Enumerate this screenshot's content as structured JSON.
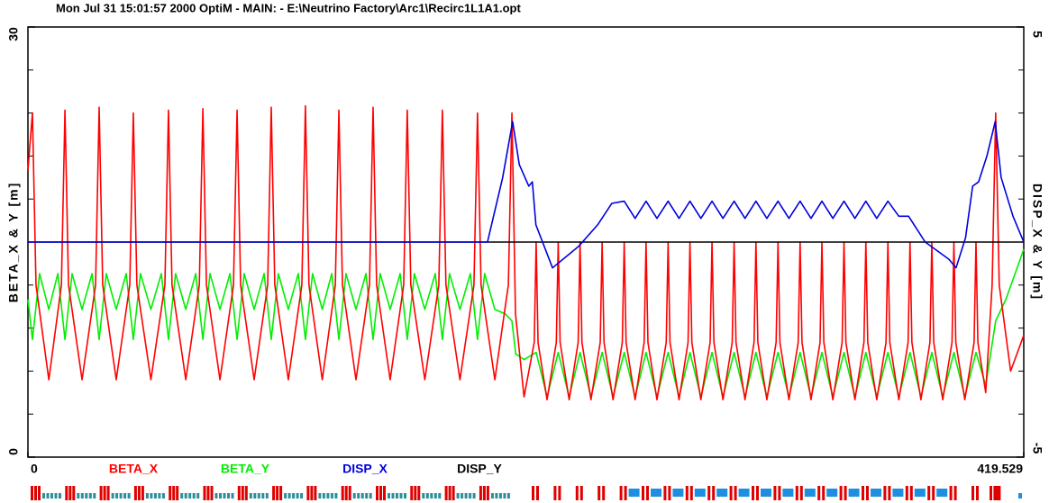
{
  "chart_data": {
    "type": "line",
    "title": "Mon Jul 31 15:01:57 2000    OptiM - MAIN: - E:\\Neutrino Factory\\Arc1\\Recirc1L1A1.opt",
    "y_label": "BETA_X & Y [m]",
    "y2_label": "DISP_X & Y [m]",
    "xlim": [
      0,
      419.529
    ],
    "xticks": [
      0,
      419.529
    ],
    "ylim": [
      0,
      30
    ],
    "yticks": [
      0,
      30
    ],
    "yminorticks": [
      3,
      6,
      9,
      12,
      15,
      18,
      21,
      24,
      27
    ],
    "y2lim": [
      -5,
      5
    ],
    "y2ticks": [
      -5,
      5
    ],
    "y2minorticks": [
      -4,
      -3,
      -2,
      -1,
      0,
      1,
      2,
      3,
      4
    ],
    "series": [
      {
        "name": "BETA_X",
        "color": "#ff0000",
        "x": [
          0,
          1.9,
          3.4,
          8.8,
          14.1,
          15.6,
          17.1,
          22.8,
          28.5,
          30,
          31.5,
          37.2,
          42.9,
          44.4,
          45.9,
          51.8,
          57.7,
          59.2,
          60.7,
          66.5,
          72.2,
          73.7,
          75.2,
          80.9,
          86.6,
          88.1,
          89.6,
          95.3,
          101,
          102.5,
          104,
          109.7,
          115.4,
          116.9,
          118.4,
          124,
          129.5,
          131,
          132.5,
          138.2,
          143.9,
          145.4,
          146.9,
          152.6,
          158.3,
          159.8,
          161.3,
          167.2,
          173.1,
          174.6,
          176.1,
          182,
          187.9,
          189.4,
          190.9,
          196.7,
          202.4,
          203.9,
          205.4,
          209,
          213.3,
          214.1,
          214.9,
          218.7,
          222.6,
          223.4,
          224.2,
          228,
          231.8,
          232.6,
          233.4,
          237.2,
          241.1,
          241.9,
          242.7,
          246.5,
          250.4,
          251.2,
          252,
          255.8,
          259.6,
          260.4,
          261.2,
          265,
          268.9,
          269.7,
          270.5,
          274.3,
          278.1,
          278.9,
          279.7,
          283.5,
          287.4,
          288.2,
          289,
          292.8,
          296.7,
          297.5,
          298.3,
          302.1,
          305.9,
          306.7,
          307.5,
          311.3,
          315.2,
          316,
          316.8,
          320.6,
          324.5,
          325.3,
          326.1,
          329.9,
          333.7,
          334.5,
          335.3,
          339.1,
          343,
          343.8,
          344.6,
          348.4,
          352.2,
          353,
          353.8,
          357.6,
          361.5,
          362.3,
          363.1,
          366.9,
          370.8,
          371.6,
          372.4,
          376.2,
          380,
          380.8,
          381.6,
          385.4,
          389.3,
          390.1,
          390.9,
          394.7,
          398.6,
          399.4,
          400.2,
          403.5,
          406.2,
          407.7,
          409.2,
          414,
          419.529
        ],
        "values": [
          20,
          24,
          12,
          5.4,
          12,
          24.2,
          12,
          5.4,
          12,
          24.4,
          12,
          5.4,
          12,
          24,
          12,
          5.4,
          12,
          24.2,
          12,
          5.4,
          12,
          24.3,
          12,
          5.4,
          12,
          24.2,
          12,
          5.4,
          12,
          24.4,
          12,
          5.4,
          12,
          24.5,
          12,
          5.4,
          12,
          24.2,
          12,
          5.4,
          12,
          24.4,
          12,
          5.4,
          12,
          24.2,
          12,
          5.4,
          12,
          24.2,
          12,
          5.4,
          12,
          24,
          12,
          5.4,
          12,
          24,
          10,
          4.2,
          8,
          15,
          8,
          4,
          8,
          15,
          8,
          4,
          8,
          15,
          8,
          4,
          8,
          15,
          8,
          4,
          8,
          15,
          8,
          4,
          8,
          15,
          8,
          4,
          8,
          15,
          8,
          4,
          8,
          15,
          8,
          4,
          8,
          15,
          8,
          4,
          8,
          15,
          8,
          4,
          8,
          15,
          8,
          4,
          8,
          15,
          8,
          4,
          8,
          15,
          8,
          4,
          8,
          15,
          8,
          4,
          8,
          15,
          8,
          4,
          8,
          15,
          8,
          4,
          8,
          15,
          8,
          4,
          8,
          15,
          8,
          4,
          8,
          15,
          8,
          4,
          8,
          15,
          8,
          4,
          8,
          15,
          8,
          4.5,
          12,
          24,
          12,
          6,
          8.5
        ]
      },
      {
        "name": "BETA_Y",
        "color": "#00ee00",
        "x": [
          0,
          1.9,
          4.9,
          8.8,
          12.6,
          15.6,
          18.6,
          22.8,
          27,
          30,
          33,
          37.2,
          41.4,
          44.4,
          47.4,
          51.8,
          56.2,
          59.2,
          62.2,
          66.5,
          70.7,
          73.7,
          76.7,
          80.9,
          85.1,
          88.1,
          91.1,
          95.3,
          99.5,
          102.5,
          105.5,
          109.7,
          113.9,
          116.9,
          119.9,
          124,
          128,
          131,
          134,
          138.2,
          142.4,
          145.4,
          148.4,
          152.6,
          156.8,
          159.8,
          162.8,
          167.2,
          171.6,
          174.6,
          177.6,
          182,
          186.4,
          189.4,
          192.4,
          196.7,
          201,
          203.9,
          205.5,
          209,
          214.1,
          218.7,
          223.4,
          228,
          232.6,
          237.2,
          241.9,
          246.5,
          251.2,
          255.8,
          260.4,
          265,
          269.7,
          274.3,
          278.9,
          283.5,
          288.2,
          292.8,
          297.5,
          302.1,
          306.7,
          311.3,
          316,
          320.6,
          325.3,
          329.9,
          334.5,
          339.1,
          343.8,
          348.4,
          353,
          357.6,
          362.3,
          366.9,
          371.6,
          376.2,
          380.8,
          385.4,
          390.1,
          394.7,
          399.4,
          403.5,
          407.7,
          412,
          419.529
        ],
        "values": [
          11,
          8.2,
          12.8,
          10.3,
          12.8,
          8.2,
          12.8,
          10.3,
          12.8,
          8.2,
          12.8,
          10.3,
          12.8,
          8.2,
          12.8,
          10.3,
          12.8,
          8.2,
          12.8,
          10.3,
          12.8,
          8.2,
          12.8,
          10.3,
          12.8,
          8.2,
          12.8,
          10.3,
          12.8,
          8.2,
          12.8,
          10.3,
          12.8,
          8.2,
          12.8,
          10.3,
          12.8,
          8.2,
          12.8,
          10.3,
          12.8,
          8.2,
          12.8,
          10.3,
          12.8,
          8.2,
          12.8,
          10.3,
          12.8,
          8.2,
          12.8,
          10.3,
          12.8,
          8.2,
          12.8,
          10.3,
          10,
          9.5,
          7.2,
          6.8,
          7.3,
          4.2,
          7.3,
          4.2,
          7.3,
          4.2,
          7.3,
          4.2,
          7.3,
          4.2,
          7.3,
          4.2,
          7.3,
          4.2,
          7.3,
          4.2,
          7.3,
          4.2,
          7.3,
          4.2,
          7.3,
          4.2,
          7.3,
          4.2,
          7.3,
          4.2,
          7.3,
          4.2,
          7.3,
          4.2,
          7.3,
          4.2,
          7.3,
          4.2,
          7.3,
          4.2,
          7.3,
          4.2,
          7.3,
          4.2,
          7.3,
          5,
          9.5,
          11,
          14.5
        ]
      },
      {
        "name": "DISP_X",
        "color": "#0000dd",
        "axis": "y2",
        "x": [
          0,
          193.6,
          200,
          204.2,
          207,
          211,
          212.5,
          214,
          221,
          232,
          240,
          246,
          251.2,
          255.8,
          260.4,
          265,
          269.7,
          274.3,
          278.9,
          283.5,
          288.2,
          292.8,
          297.5,
          302.1,
          306.7,
          311.3,
          316,
          320.6,
          325.3,
          329.9,
          334.5,
          339.1,
          343.8,
          348.4,
          353,
          357.6,
          362.3,
          366.9,
          371,
          378,
          388,
          391,
          395,
          398,
          400.5,
          404,
          407.5,
          410,
          415,
          419.529
        ],
        "values": [
          0,
          0,
          1.5,
          2.8,
          1.8,
          1.3,
          1.4,
          0.4,
          -0.6,
          -0.1,
          0.4,
          0.9,
          0.95,
          0.55,
          0.95,
          0.55,
          0.95,
          0.55,
          0.95,
          0.55,
          0.95,
          0.55,
          0.95,
          0.55,
          0.95,
          0.55,
          0.95,
          0.55,
          0.95,
          0.55,
          0.95,
          0.55,
          0.95,
          0.55,
          0.95,
          0.55,
          0.95,
          0.6,
          0.6,
          0,
          -0.4,
          -0.6,
          0.1,
          1.3,
          1.4,
          2,
          2.8,
          1.5,
          0.6,
          0
        ]
      },
      {
        "name": "DISP_Y",
        "color": "#000000",
        "axis": "y2",
        "x": [
          0,
          419.529
        ],
        "values": [
          0,
          0
        ]
      }
    ]
  }
}
